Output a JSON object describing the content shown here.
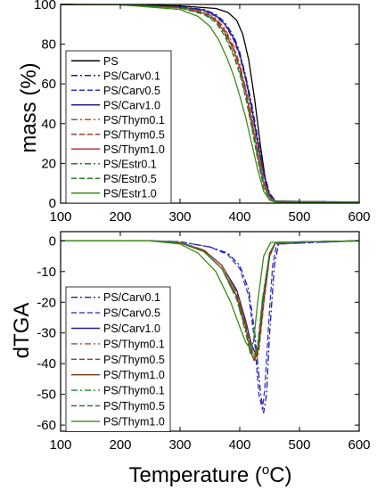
{
  "chart_data": [
    {
      "type": "line",
      "ylabel": "mass (%)",
      "xlim": [
        100,
        600
      ],
      "ylim": [
        0,
        100
      ],
      "x_ticks": [
        100,
        200,
        300,
        400,
        500,
        600
      ],
      "y_ticks": [
        0,
        20,
        40,
        60,
        80,
        100
      ],
      "legend_position": "left",
      "series": [
        {
          "name": "PS",
          "color": "#000000",
          "dash": "solid",
          "x": [
            100,
            200,
            300,
            360,
            380,
            395,
            405,
            415,
            425,
            435,
            445,
            455,
            600
          ],
          "y": [
            100,
            99.9,
            99.3,
            98,
            96,
            92,
            85,
            72,
            52,
            28,
            8,
            1,
            0.3
          ]
        },
        {
          "name": "PS/Carv0.1",
          "color": "#1a1aa8",
          "dash": "dashdot",
          "x": [
            100,
            200,
            300,
            340,
            360,
            375,
            390,
            400,
            410,
            420,
            430,
            440,
            450,
            460,
            600
          ],
          "y": [
            100,
            99.8,
            98.8,
            97.5,
            95,
            91,
            84,
            76,
            64,
            50,
            33,
            16,
            5,
            1,
            0.5
          ]
        },
        {
          "name": "PS/Carv0.5",
          "color": "#3535c8",
          "dash": "dash",
          "x": [
            100,
            200,
            300,
            340,
            360,
            375,
            390,
            400,
            410,
            420,
            430,
            440,
            450,
            460,
            600
          ],
          "y": [
            100,
            99.8,
            98.6,
            97,
            94,
            90,
            82,
            74,
            62,
            47,
            30,
            14,
            4,
            1,
            0.5
          ]
        },
        {
          "name": "PS/Carv1.0",
          "color": "#20208a",
          "dash": "solid",
          "x": [
            100,
            200,
            300,
            340,
            360,
            375,
            390,
            400,
            410,
            420,
            430,
            440,
            450,
            460,
            600
          ],
          "y": [
            100,
            99.8,
            98.7,
            97.2,
            94.5,
            90,
            83,
            75,
            63,
            48,
            31,
            15,
            4,
            1,
            0.5
          ]
        },
        {
          "name": "PS/Thym0.1",
          "color": "#b0521e",
          "dash": "dashdot",
          "x": [
            100,
            200,
            300,
            340,
            360,
            375,
            390,
            400,
            410,
            420,
            430,
            440,
            450,
            460,
            600
          ],
          "y": [
            100,
            99.8,
            98.5,
            96.5,
            93,
            88,
            79,
            70,
            58,
            44,
            27,
            12,
            3,
            0.8,
            0.5
          ]
        },
        {
          "name": "PS/Thym0.5",
          "color": "#a23a1e",
          "dash": "dash",
          "x": [
            100,
            200,
            300,
            340,
            360,
            375,
            390,
            400,
            410,
            420,
            430,
            440,
            450,
            460,
            600
          ],
          "y": [
            100,
            99.8,
            98.5,
            96,
            92.5,
            87,
            78,
            69,
            57,
            42,
            26,
            11,
            3,
            0.8,
            0.5
          ]
        },
        {
          "name": "PS/Thym1.0",
          "color": "#c4303a",
          "dash": "solid",
          "x": [
            100,
            200,
            300,
            340,
            360,
            375,
            390,
            400,
            410,
            420,
            430,
            440,
            450,
            460,
            600
          ],
          "y": [
            100,
            99.8,
            98.4,
            95.5,
            92,
            86,
            77,
            68,
            56,
            41,
            25,
            10,
            3,
            0.8,
            0.5
          ]
        },
        {
          "name": "PS/Estr0.1",
          "color": "#1e8a1e",
          "dash": "dashdot",
          "x": [
            100,
            200,
            300,
            340,
            360,
            375,
            390,
            400,
            410,
            420,
            430,
            440,
            450,
            460,
            600
          ],
          "y": [
            100,
            99.8,
            98.4,
            95.5,
            91.5,
            85,
            75,
            66,
            54,
            39,
            23,
            9,
            2.5,
            0.8,
            0.5
          ]
        },
        {
          "name": "PS/Estr0.5",
          "color": "#2a7a2a",
          "dash": "dash",
          "x": [
            100,
            200,
            300,
            340,
            360,
            375,
            390,
            400,
            410,
            420,
            430,
            440,
            450,
            460,
            600
          ],
          "y": [
            100,
            99.8,
            98.2,
            95,
            91,
            84,
            74,
            65,
            53,
            38,
            22,
            8,
            2,
            0.8,
            0.5
          ]
        },
        {
          "name": "PS/Estr1.0",
          "color": "#3a8a1a",
          "dash": "solid",
          "x": [
            100,
            200,
            300,
            330,
            350,
            365,
            380,
            390,
            400,
            410,
            420,
            430,
            440,
            450,
            460,
            600
          ],
          "y": [
            100,
            99.8,
            97.5,
            94,
            89,
            82,
            72,
            64,
            54,
            43,
            30,
            17,
            6,
            1.5,
            0.5,
            0.3
          ]
        }
      ]
    },
    {
      "type": "line",
      "xlabel": "Temperature (°C)",
      "ylabel": "dTGA",
      "xlim": [
        100,
        600
      ],
      "ylim": [
        -62,
        3
      ],
      "x_ticks": [
        100,
        200,
        300,
        400,
        500,
        600
      ],
      "y_ticks": [
        0,
        -10,
        -20,
        -30,
        -40,
        -50,
        -60
      ],
      "legend_position": "left",
      "series": [
        {
          "name": "PS/Carv0.1",
          "color": "#1a1aa8",
          "dash": "dashdot",
          "x": [
            100,
            250,
            300,
            350,
            380,
            400,
            415,
            425,
            435,
            440,
            445,
            450,
            458,
            465,
            600
          ],
          "y": [
            0,
            0,
            -0.3,
            -2,
            -4,
            -8,
            -16,
            -30,
            -50,
            -56,
            -50,
            -30,
            -8,
            -1,
            0
          ]
        },
        {
          "name": "PS/Carv0.5",
          "color": "#3535c8",
          "dash": "dash",
          "x": [
            100,
            250,
            300,
            350,
            380,
            400,
            415,
            425,
            432,
            438,
            442,
            448,
            455,
            462,
            600
          ],
          "y": [
            0,
            0,
            -0.3,
            -2,
            -4.5,
            -9,
            -18,
            -33,
            -50,
            -55,
            -48,
            -28,
            -8,
            -1,
            0
          ]
        },
        {
          "name": "PS/Carv1.0",
          "color": "#20208a",
          "dash": "solid",
          "x": [
            100,
            250,
            300,
            340,
            370,
            395,
            410,
            420,
            427,
            432,
            440,
            450,
            460,
            600
          ],
          "y": [
            0,
            0,
            -0.5,
            -3,
            -8,
            -16,
            -26,
            -34,
            -37,
            -34,
            -20,
            -5,
            -0.5,
            0
          ]
        },
        {
          "name": "PS/Thym0.1",
          "color": "#b0521e",
          "dash": "dashdot",
          "x": [
            100,
            250,
            300,
            340,
            370,
            395,
            410,
            420,
            427,
            432,
            440,
            450,
            460,
            600
          ],
          "y": [
            0,
            0,
            -0.5,
            -3,
            -8,
            -17,
            -27,
            -35,
            -38,
            -35,
            -20,
            -5,
            -0.5,
            0
          ]
        },
        {
          "name": "PS/Thym0.5",
          "color": "#a23a1e",
          "dash": "dash",
          "x": [
            100,
            250,
            300,
            340,
            370,
            395,
            410,
            420,
            427,
            432,
            440,
            450,
            460,
            600
          ],
          "y": [
            0,
            0,
            -0.5,
            -3,
            -8,
            -17,
            -27,
            -36,
            -39,
            -36,
            -21,
            -5,
            -0.5,
            0
          ]
        },
        {
          "name": "PS/Thym1.0",
          "color": "#7a3a10",
          "dash": "solid",
          "x": [
            100,
            250,
            300,
            340,
            370,
            395,
            410,
            418,
            424,
            430,
            438,
            450,
            460,
            600
          ],
          "y": [
            0,
            0,
            -0.6,
            -3.5,
            -9,
            -18,
            -28,
            -36,
            -39,
            -36,
            -20,
            -4,
            -0.5,
            0
          ]
        },
        {
          "name": "PS/Thym0.1",
          "color": "#1e8a1e",
          "dash": "dashdot",
          "x": [
            100,
            250,
            300,
            340,
            370,
            395,
            410,
            418,
            424,
            430,
            438,
            450,
            460,
            600
          ],
          "y": [
            0,
            0,
            -0.6,
            -3.5,
            -9,
            -19,
            -30,
            -37,
            -38,
            -35,
            -19,
            -4,
            -0.5,
            0
          ]
        },
        {
          "name": "PS/Thym0.5",
          "color": "#2a7a2a",
          "dash": "dash",
          "x": [
            100,
            250,
            300,
            340,
            370,
            395,
            410,
            418,
            424,
            430,
            438,
            450,
            460,
            600
          ],
          "y": [
            0,
            0,
            -0.6,
            -3.5,
            -9,
            -19,
            -29,
            -36,
            -37,
            -34,
            -19,
            -4,
            -0.5,
            0
          ]
        },
        {
          "name": "PS/Thym1.0",
          "color": "#3a8a1a",
          "dash": "solid",
          "x": [
            100,
            250,
            300,
            330,
            360,
            385,
            400,
            410,
            417,
            423,
            430,
            440,
            452,
            600
          ],
          "y": [
            0,
            0,
            -1,
            -4,
            -10,
            -20,
            -28,
            -33,
            -35,
            -33,
            -20,
            -5,
            -0.5,
            0
          ]
        }
      ]
    }
  ]
}
